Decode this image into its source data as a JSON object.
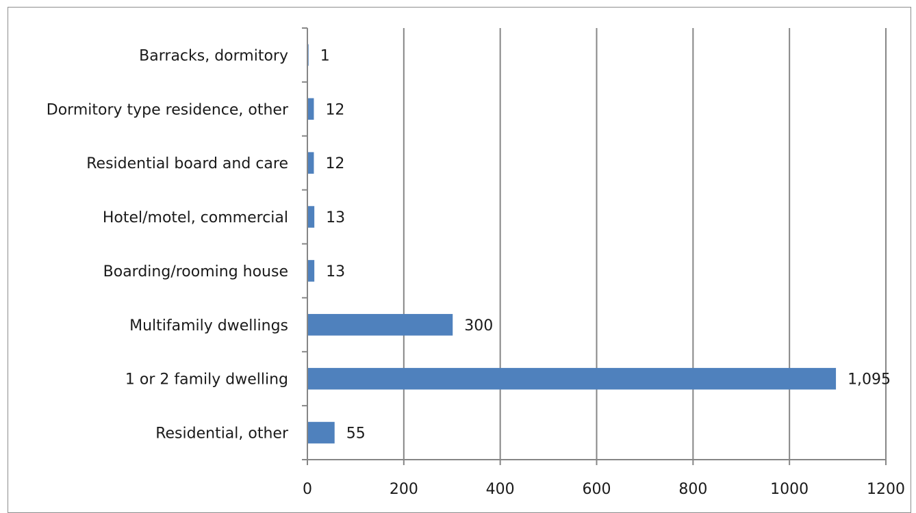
{
  "chart_data": {
    "type": "bar",
    "orientation": "horizontal",
    "categories": [
      "Barracks, dormitory",
      "Dormitory type residence, other",
      "Residential board and care",
      "Hotel/motel, commercial",
      "Boarding/rooming house",
      "Multifamily dwellings",
      "1 or 2 family dwelling",
      "Residential, other"
    ],
    "values": [
      1,
      12,
      12,
      13,
      13,
      300,
      1095,
      55
    ],
    "data_labels": [
      "1",
      "12",
      "12",
      "13",
      "13",
      "300",
      "1,095",
      "55"
    ],
    "xlim": [
      0,
      1200
    ],
    "x_ticks": [
      0,
      200,
      400,
      600,
      800,
      1000,
      1200
    ],
    "x_tick_labels": [
      "0",
      "200",
      "400",
      "600",
      "800",
      "1000",
      "1200"
    ],
    "grid": "vertical",
    "legend": "none",
    "title": "",
    "xlabel": "",
    "ylabel": "",
    "colors": {
      "bar": "#4f81bd",
      "gridline": "#868686",
      "axis": "#868686",
      "text": "#1a1a1a"
    }
  }
}
